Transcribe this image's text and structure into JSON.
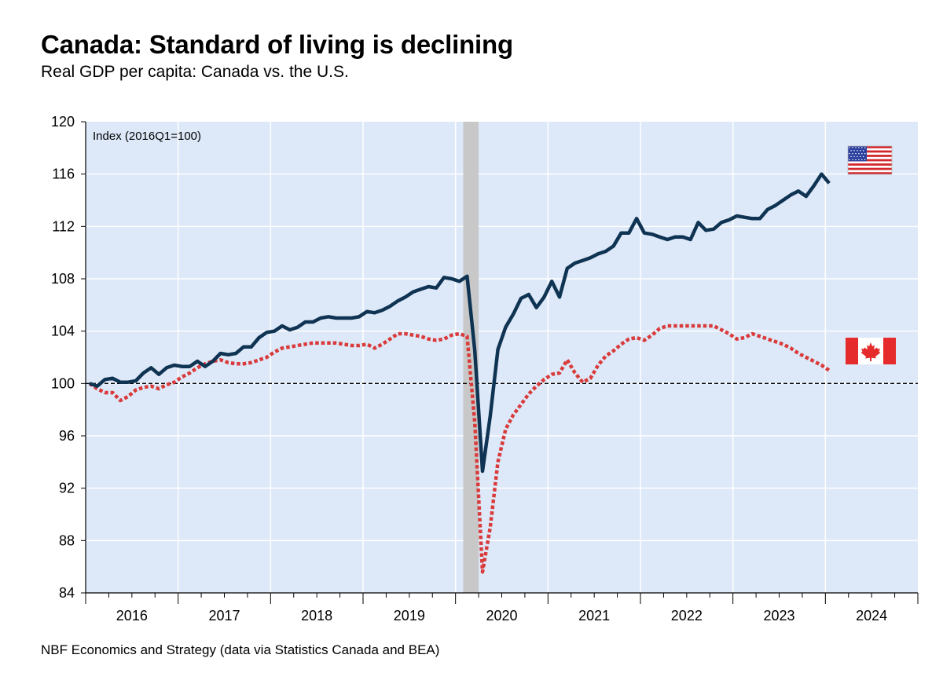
{
  "header": {
    "title": "Canada: Standard of living is declining",
    "subtitle": "Real GDP per capita: Canada vs. the U.S."
  },
  "footer": {
    "source": "NBF Economics and Strategy (data via Statistics Canada and BEA)"
  },
  "colors": {
    "us_line": "#0f3352",
    "canada_line": "#d93a3a",
    "plot_background": "#dde8f8",
    "recession_band": "#c8c8c8"
  },
  "chart_data": {
    "type": "line",
    "unit_label": "Index (2016Q1=100)",
    "xlabel": "",
    "ylabel": "",
    "ylim": [
      84,
      120
    ],
    "yticks": [
      84,
      88,
      92,
      96,
      100,
      104,
      108,
      112,
      116,
      120
    ],
    "xlim": [
      "2016-01",
      "2024-12"
    ],
    "xticks": [
      "2016",
      "2017",
      "2018",
      "2019",
      "2020",
      "2021",
      "2022",
      "2023",
      "2024"
    ],
    "grid": true,
    "reference_line": {
      "y": 100,
      "style": "dashed"
    },
    "shaded_period": {
      "start": "2020-02",
      "end": "2020-04",
      "label": "recession"
    },
    "legend": "flag icons at right end of each series",
    "series": [
      {
        "key": "us",
        "icon": "us-flag-icon",
        "style": "solid",
        "points": [
          [
            "2016-01",
            100.0
          ],
          [
            "2016-02",
            99.8
          ],
          [
            "2016-03",
            100.3
          ],
          [
            "2016-04",
            100.4
          ],
          [
            "2016-05",
            100.1
          ],
          [
            "2016-06",
            100.1
          ],
          [
            "2016-07",
            100.2
          ],
          [
            "2016-08",
            100.8
          ],
          [
            "2016-09",
            101.2
          ],
          [
            "2016-10",
            100.7
          ],
          [
            "2016-11",
            101.2
          ],
          [
            "2016-12",
            101.4
          ],
          [
            "2017-01",
            101.3
          ],
          [
            "2017-02",
            101.3
          ],
          [
            "2017-03",
            101.7
          ],
          [
            "2017-04",
            101.3
          ],
          [
            "2017-05",
            101.7
          ],
          [
            "2017-06",
            102.3
          ],
          [
            "2017-07",
            102.2
          ],
          [
            "2017-08",
            102.3
          ],
          [
            "2017-09",
            102.8
          ],
          [
            "2017-10",
            102.8
          ],
          [
            "2017-11",
            103.5
          ],
          [
            "2017-12",
            103.9
          ],
          [
            "2018-01",
            104.0
          ],
          [
            "2018-02",
            104.4
          ],
          [
            "2018-03",
            104.1
          ],
          [
            "2018-04",
            104.3
          ],
          [
            "2018-05",
            104.7
          ],
          [
            "2018-06",
            104.7
          ],
          [
            "2018-07",
            105.0
          ],
          [
            "2018-08",
            105.1
          ],
          [
            "2018-09",
            105.0
          ],
          [
            "2018-10",
            105.0
          ],
          [
            "2018-11",
            105.0
          ],
          [
            "2018-12",
            105.1
          ],
          [
            "2019-01",
            105.5
          ],
          [
            "2019-02",
            105.4
          ],
          [
            "2019-03",
            105.6
          ],
          [
            "2019-04",
            105.9
          ],
          [
            "2019-05",
            106.3
          ],
          [
            "2019-06",
            106.6
          ],
          [
            "2019-07",
            107.0
          ],
          [
            "2019-08",
            107.2
          ],
          [
            "2019-09",
            107.4
          ],
          [
            "2019-10",
            107.3
          ],
          [
            "2019-11",
            108.1
          ],
          [
            "2019-12",
            108.0
          ],
          [
            "2020-01",
            107.8
          ],
          [
            "2020-02",
            108.2
          ],
          [
            "2020-03",
            102.5
          ],
          [
            "2020-04",
            93.3
          ],
          [
            "2020-05",
            97.5
          ],
          [
            "2020-06",
            102.6
          ],
          [
            "2020-07",
            104.3
          ],
          [
            "2020-08",
            105.3
          ],
          [
            "2020-09",
            106.5
          ],
          [
            "2020-10",
            106.8
          ],
          [
            "2020-11",
            105.8
          ],
          [
            "2020-12",
            106.6
          ],
          [
            "2021-01",
            107.8
          ],
          [
            "2021-02",
            106.6
          ],
          [
            "2021-03",
            108.8
          ],
          [
            "2021-04",
            109.2
          ],
          [
            "2021-05",
            109.4
          ],
          [
            "2021-06",
            109.6
          ],
          [
            "2021-07",
            109.9
          ],
          [
            "2021-08",
            110.1
          ],
          [
            "2021-09",
            110.5
          ],
          [
            "2021-10",
            111.5
          ],
          [
            "2021-11",
            111.5
          ],
          [
            "2021-12",
            112.6
          ],
          [
            "2022-01",
            111.5
          ],
          [
            "2022-02",
            111.4
          ],
          [
            "2022-03",
            111.2
          ],
          [
            "2022-04",
            111.0
          ],
          [
            "2022-05",
            111.2
          ],
          [
            "2022-06",
            111.2
          ],
          [
            "2022-07",
            111.0
          ],
          [
            "2022-08",
            112.3
          ],
          [
            "2022-09",
            111.7
          ],
          [
            "2022-10",
            111.8
          ],
          [
            "2022-11",
            112.3
          ],
          [
            "2022-12",
            112.5
          ],
          [
            "2023-01",
            112.8
          ],
          [
            "2023-02",
            112.7
          ],
          [
            "2023-03",
            112.6
          ],
          [
            "2023-04",
            112.6
          ],
          [
            "2023-05",
            113.3
          ],
          [
            "2023-06",
            113.6
          ],
          [
            "2023-07",
            114.0
          ],
          [
            "2023-08",
            114.4
          ],
          [
            "2023-09",
            114.7
          ],
          [
            "2023-10",
            114.3
          ],
          [
            "2023-11",
            115.1
          ],
          [
            "2023-12",
            116.0
          ],
          [
            "2024-01",
            115.3
          ]
        ]
      },
      {
        "key": "canada",
        "icon": "canada-flag-icon",
        "style": "dotted",
        "points": [
          [
            "2016-01",
            100.0
          ],
          [
            "2016-02",
            99.6
          ],
          [
            "2016-03",
            99.3
          ],
          [
            "2016-04",
            99.3
          ],
          [
            "2016-05",
            98.7
          ],
          [
            "2016-06",
            99.0
          ],
          [
            "2016-07",
            99.5
          ],
          [
            "2016-08",
            99.7
          ],
          [
            "2016-09",
            99.8
          ],
          [
            "2016-10",
            99.6
          ],
          [
            "2016-11",
            99.9
          ],
          [
            "2016-12",
            100.1
          ],
          [
            "2017-01",
            100.5
          ],
          [
            "2017-02",
            100.8
          ],
          [
            "2017-03",
            101.2
          ],
          [
            "2017-04",
            101.5
          ],
          [
            "2017-05",
            101.7
          ],
          [
            "2017-06",
            101.8
          ],
          [
            "2017-07",
            101.6
          ],
          [
            "2017-08",
            101.5
          ],
          [
            "2017-09",
            101.5
          ],
          [
            "2017-10",
            101.6
          ],
          [
            "2017-11",
            101.8
          ],
          [
            "2017-12",
            102.0
          ],
          [
            "2018-01",
            102.4
          ],
          [
            "2018-02",
            102.7
          ],
          [
            "2018-03",
            102.8
          ],
          [
            "2018-04",
            102.9
          ],
          [
            "2018-05",
            103.0
          ],
          [
            "2018-06",
            103.1
          ],
          [
            "2018-07",
            103.1
          ],
          [
            "2018-08",
            103.1
          ],
          [
            "2018-09",
            103.1
          ],
          [
            "2018-10",
            103.0
          ],
          [
            "2018-11",
            102.9
          ],
          [
            "2018-12",
            102.9
          ],
          [
            "2019-01",
            103.0
          ],
          [
            "2019-02",
            102.7
          ],
          [
            "2019-03",
            103.0
          ],
          [
            "2019-04",
            103.4
          ],
          [
            "2019-05",
            103.8
          ],
          [
            "2019-06",
            103.8
          ],
          [
            "2019-07",
            103.7
          ],
          [
            "2019-08",
            103.6
          ],
          [
            "2019-09",
            103.4
          ],
          [
            "2019-10",
            103.3
          ],
          [
            "2019-11",
            103.4
          ],
          [
            "2019-12",
            103.7
          ],
          [
            "2020-01",
            103.8
          ],
          [
            "2020-02",
            103.6
          ],
          [
            "2020-03",
            97.0
          ],
          [
            "2020-04",
            85.6
          ],
          [
            "2020-05",
            89.0
          ],
          [
            "2020-06",
            94.0
          ],
          [
            "2020-07",
            96.5
          ],
          [
            "2020-08",
            97.6
          ],
          [
            "2020-09",
            98.4
          ],
          [
            "2020-10",
            99.2
          ],
          [
            "2020-11",
            99.8
          ],
          [
            "2020-12",
            100.3
          ],
          [
            "2021-01",
            100.7
          ],
          [
            "2021-02",
            100.8
          ],
          [
            "2021-03",
            101.8
          ],
          [
            "2021-04",
            100.8
          ],
          [
            "2021-05",
            100.1
          ],
          [
            "2021-06",
            100.4
          ],
          [
            "2021-07",
            101.4
          ],
          [
            "2021-08",
            102.1
          ],
          [
            "2021-09",
            102.5
          ],
          [
            "2021-10",
            103.0
          ],
          [
            "2021-11",
            103.4
          ],
          [
            "2021-12",
            103.5
          ],
          [
            "2022-01",
            103.3
          ],
          [
            "2022-02",
            103.7
          ],
          [
            "2022-03",
            104.2
          ],
          [
            "2022-04",
            104.4
          ],
          [
            "2022-05",
            104.4
          ],
          [
            "2022-06",
            104.4
          ],
          [
            "2022-07",
            104.4
          ],
          [
            "2022-08",
            104.4
          ],
          [
            "2022-09",
            104.4
          ],
          [
            "2022-10",
            104.4
          ],
          [
            "2022-11",
            104.1
          ],
          [
            "2022-12",
            103.8
          ],
          [
            "2023-01",
            103.4
          ],
          [
            "2023-02",
            103.5
          ],
          [
            "2023-03",
            103.8
          ],
          [
            "2023-04",
            103.6
          ],
          [
            "2023-05",
            103.4
          ],
          [
            "2023-06",
            103.2
          ],
          [
            "2023-07",
            103.0
          ],
          [
            "2023-08",
            102.7
          ],
          [
            "2023-09",
            102.3
          ],
          [
            "2023-10",
            102.0
          ],
          [
            "2023-11",
            101.7
          ],
          [
            "2023-12",
            101.4
          ],
          [
            "2024-01",
            101.0
          ]
        ]
      }
    ]
  }
}
